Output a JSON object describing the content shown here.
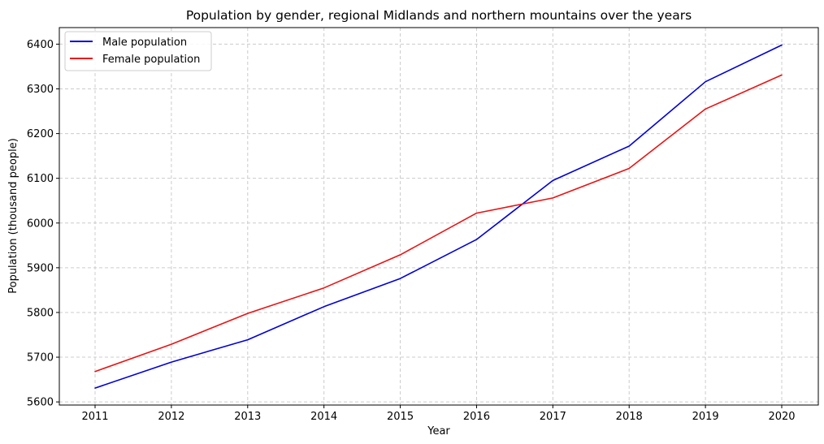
{
  "chart_data": {
    "type": "line",
    "title": "Population by gender, regional Midlands and northern mountains over the years",
    "xlabel": "Year",
    "ylabel": "Population (thousand people)",
    "x": [
      "2011",
      "2012",
      "2013",
      "2014",
      "2015",
      "2016",
      "2017",
      "2018",
      "2019",
      "2020"
    ],
    "yticks": [
      5600,
      5700,
      5800,
      5900,
      6000,
      6100,
      6200,
      6300,
      6400
    ],
    "ylim": [
      5593,
      6437
    ],
    "grid": true,
    "legend_position": "top-left",
    "series": [
      {
        "name": "Male population",
        "color": "#0000dd",
        "values": [
          5631,
          5689,
          5739,
          5813,
          5876,
          5963,
          6095,
          6172,
          6316,
          6398
        ]
      },
      {
        "name": "Female population",
        "color": "#ee1111",
        "values": [
          5668,
          5729,
          5798,
          5855,
          5929,
          6022,
          6056,
          6122,
          6255,
          6331
        ]
      }
    ]
  }
}
